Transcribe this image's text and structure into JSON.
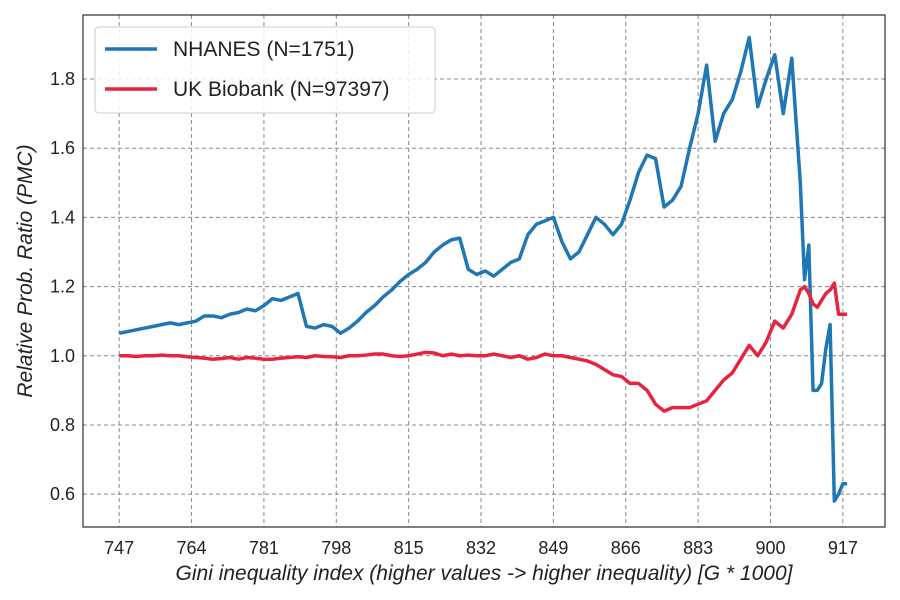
{
  "chart_data": {
    "type": "line",
    "xlabel": "Gini inequality index (higher values -> higher inequality) [G * 1000]",
    "ylabel": "Relative Prob. Ratio (PMC)",
    "x": [
      747,
      749,
      751,
      753,
      755,
      757,
      759,
      761,
      763,
      765,
      767,
      769,
      771,
      773,
      775,
      777,
      779,
      781,
      783,
      785,
      787,
      789,
      791,
      793,
      795,
      797,
      799,
      801,
      803,
      805,
      807,
      809,
      811,
      813,
      815,
      817,
      819,
      821,
      823,
      825,
      827,
      829,
      831,
      833,
      835,
      837,
      839,
      841,
      843,
      845,
      847,
      849,
      851,
      853,
      855,
      857,
      859,
      861,
      863,
      865,
      867,
      869,
      871,
      873,
      875,
      877,
      879,
      881,
      883,
      885,
      887,
      889,
      891,
      893,
      895,
      897,
      899,
      901,
      903,
      905,
      907,
      908,
      909,
      910,
      911,
      912,
      913,
      914,
      915,
      916,
      917,
      918
    ],
    "series": [
      {
        "name": "NHANES (N=1751)",
        "color": "#1f77b4",
        "values": [
          1.065,
          1.07,
          1.075,
          1.08,
          1.085,
          1.09,
          1.095,
          1.09,
          1.095,
          1.1,
          1.115,
          1.115,
          1.11,
          1.12,
          1.125,
          1.135,
          1.13,
          1.145,
          1.165,
          1.16,
          1.17,
          1.18,
          1.085,
          1.08,
          1.09,
          1.085,
          1.065,
          1.08,
          1.1,
          1.125,
          1.145,
          1.17,
          1.19,
          1.215,
          1.235,
          1.25,
          1.27,
          1.3,
          1.32,
          1.335,
          1.34,
          1.25,
          1.235,
          1.245,
          1.23,
          1.25,
          1.27,
          1.28,
          1.35,
          1.38,
          1.39,
          1.4,
          1.33,
          1.28,
          1.3,
          1.35,
          1.4,
          1.38,
          1.35,
          1.38,
          1.45,
          1.53,
          1.58,
          1.57,
          1.43,
          1.45,
          1.49,
          1.6,
          1.7,
          1.84,
          1.62,
          1.7,
          1.74,
          1.82,
          1.92,
          1.72,
          1.8,
          1.87,
          1.7,
          1.86,
          1.5,
          1.22,
          1.32,
          0.9,
          0.9,
          0.92,
          1.02,
          1.09,
          0.58,
          0.6,
          0.63,
          0.63
        ]
      },
      {
        "name": "UK Biobank (N=97397)",
        "color": "#e6243f",
        "values": [
          1.0,
          1.0,
          0.998,
          1.0,
          1.0,
          1.002,
          1.0,
          1.0,
          0.997,
          0.995,
          0.993,
          0.99,
          0.992,
          0.995,
          0.99,
          0.995,
          0.993,
          0.99,
          0.99,
          0.993,
          0.995,
          0.997,
          0.995,
          1.0,
          0.998,
          0.997,
          0.995,
          1.0,
          1.0,
          1.002,
          1.005,
          1.005,
          1.0,
          0.998,
          1.0,
          1.005,
          1.01,
          1.008,
          1.0,
          1.005,
          1.0,
          1.002,
          1.0,
          1.0,
          1.005,
          1.0,
          0.995,
          1.0,
          0.99,
          0.995,
          1.005,
          1.0,
          1.0,
          0.995,
          0.99,
          0.985,
          0.975,
          0.96,
          0.945,
          0.94,
          0.92,
          0.92,
          0.9,
          0.86,
          0.84,
          0.85,
          0.85,
          0.85,
          0.86,
          0.87,
          0.9,
          0.93,
          0.95,
          0.99,
          1.03,
          1.0,
          1.04,
          1.1,
          1.08,
          1.12,
          1.19,
          1.2,
          1.18,
          1.15,
          1.14,
          1.16,
          1.18,
          1.19,
          1.21,
          1.12,
          1.12,
          1.12
        ]
      }
    ],
    "xlim": [
      738.5,
      926.9
    ],
    "ylim": [
      0.505,
      1.985
    ],
    "xticks": [
      747,
      764,
      781,
      798,
      815,
      832,
      849,
      866,
      883,
      900,
      917
    ],
    "yticks": [
      0.6,
      0.8,
      {
        "value": 1,
        "label": "1.0"
      },
      1.2,
      1.4,
      1.6,
      1.8
    ],
    "grid": true,
    "legend": "upper left"
  }
}
